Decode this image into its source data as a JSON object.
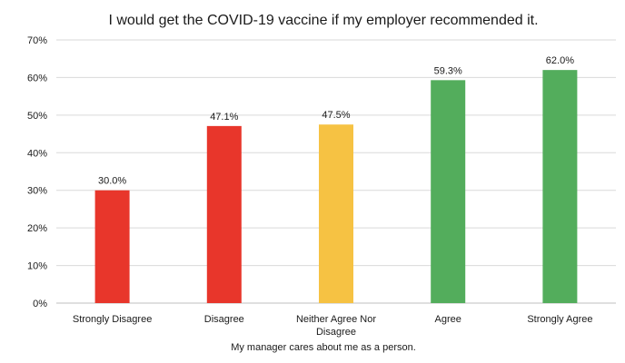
{
  "chart_data": {
    "type": "bar",
    "title": "I would get the COVID-19 vaccine if my employer recommended it.",
    "xlabel": "My manager cares about me as a person.",
    "ylabel": "",
    "ylim": [
      0,
      70
    ],
    "yticks": [
      "0%",
      "10%",
      "20%",
      "30%",
      "40%",
      "50%",
      "60%",
      "70%"
    ],
    "categories": [
      [
        "Strongly Disagree"
      ],
      [
        "Disagree"
      ],
      [
        "Neither Agree Nor",
        "Disagree"
      ],
      [
        "Agree"
      ],
      [
        "Strongly Agree"
      ]
    ],
    "values": [
      30.0,
      47.1,
      47.5,
      59.3,
      62.0
    ],
    "data_labels": [
      "30.0%",
      "47.1%",
      "47.5%",
      "59.3%",
      "62.0%"
    ],
    "colors": [
      "#e8362b",
      "#e8362b",
      "#f6c243",
      "#53ad5c",
      "#53ad5c"
    ],
    "grid": true,
    "legend": "none"
  }
}
